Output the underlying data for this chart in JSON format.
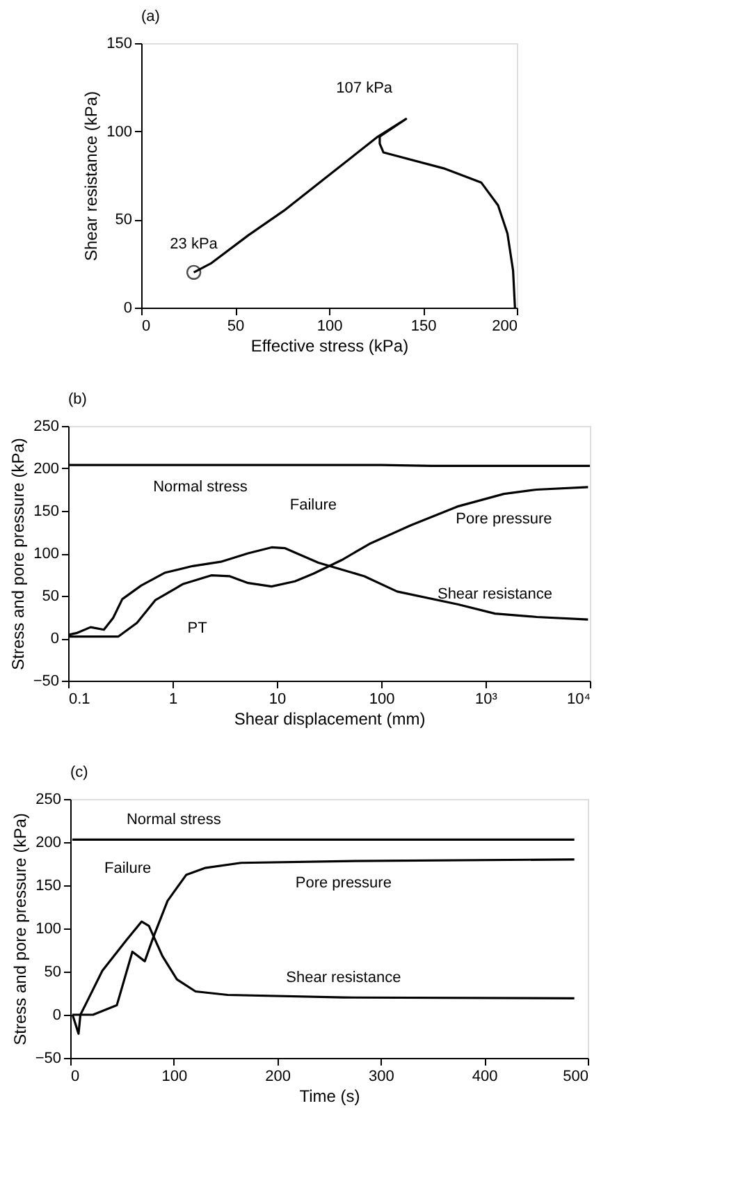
{
  "chart_data": [
    {
      "type": "line",
      "title": "(a)",
      "xlabel": "Effective stress (kPa)",
      "ylabel": "Shear resistance (kPa)",
      "xlim": [
        0,
        200
      ],
      "ylim": [
        0,
        150
      ],
      "xticks": [
        0,
        50,
        100,
        150,
        200
      ],
      "yticks": [
        0,
        50,
        100,
        150
      ],
      "grid": false,
      "series": [
        {
          "color": "#000000",
          "x": [
            199,
            198,
            195,
            190,
            181,
            161,
            129,
            127,
            127,
            141,
            126,
            76,
            57,
            37,
            28
          ],
          "values": [
            0,
            21,
            42,
            58,
            71,
            79,
            88,
            93,
            97,
            107,
            97,
            55,
            41,
            25,
            20
          ]
        },
        {
          "type": "scatter",
          "marker": "circle",
          "color": "#000000",
          "x": [
            28
          ],
          "values": [
            20
          ]
        }
      ],
      "annotations": [
        {
          "text": "23 kPa",
          "x": 28,
          "y": 20
        },
        {
          "text": "107 kPa",
          "x": 141,
          "y": 107
        }
      ]
    },
    {
      "type": "line",
      "title": "(b)",
      "xlabel": "Shear displacement (mm)",
      "ylabel": "Stress and pore pressure (kPa)",
      "log": "x",
      "xlim": [
        0.1,
        10000
      ],
      "ylim": [
        -50,
        250
      ],
      "xticks": [
        0.1,
        1,
        10,
        100,
        {
          "value": 1000,
          "label": "10³"
        },
        {
          "value": 10000,
          "label": "10⁴"
        }
      ],
      "yticks": [
        -50,
        0,
        50,
        100,
        150,
        200,
        250
      ],
      "grid": false,
      "series": [
        {
          "name": "Normal stress",
          "color": "#000000",
          "x": [
            0.1,
            0.3,
            1,
            3,
            10,
            30,
            100,
            300,
            1000,
            3000,
            10000
          ],
          "values": [
            204,
            204,
            204,
            204,
            204,
            204,
            204,
            203,
            203,
            203,
            203
          ]
        },
        {
          "name": "Shear resistance",
          "color": "#000000",
          "x": [
            0.1,
            0.12,
            0.164,
            0.22,
            0.27,
            0.33,
            0.5,
            0.84,
            1.56,
            2.9,
            5.3,
            8.9,
            12,
            25,
            69,
            142,
            540,
            1230,
            3100,
            9600
          ],
          "values": [
            4,
            6,
            13,
            10,
            24,
            46,
            62,
            77,
            85,
            90,
            100,
            107,
            106,
            89,
            73,
            55,
            40,
            29,
            25,
            22
          ]
        },
        {
          "name": "Pore pressure",
          "color": "#000000",
          "x": [
            0.103,
            0.303,
            0.456,
            0.687,
            1.27,
            2.35,
            3.54,
            5.3,
            8.9,
            14.9,
            22.4,
            41.7,
            77,
            192,
            535,
            1500,
            3070,
            9600
          ],
          "values": [
            2,
            2,
            18,
            45,
            64,
            74,
            73,
            65,
            61,
            67,
            76,
            92,
            111,
            133,
            155,
            170,
            175,
            178
          ]
        }
      ],
      "annotations": [
        {
          "text": "Failure",
          "x": 8.9,
          "y": 107
        },
        {
          "text": "PT",
          "x": 1.27,
          "y": 64
        }
      ]
    },
    {
      "type": "line",
      "title": "(c)",
      "xlabel": "Time (s)",
      "ylabel": "Stress and pore pressure (kPa)",
      "xlim": [
        0,
        500
      ],
      "ylim": [
        -50,
        250
      ],
      "xticks": [
        0,
        100,
        200,
        300,
        400,
        500
      ],
      "yticks": [
        -50,
        0,
        50,
        100,
        150,
        200,
        250
      ],
      "grid": false,
      "series": [
        {
          "name": "Normal stress",
          "color": "#000000",
          "x": [
            2,
            100,
            200,
            300,
            400,
            487
          ],
          "values": [
            203,
            203,
            203,
            203,
            203,
            203
          ]
        },
        {
          "name": "Shear resistance",
          "color": "#000000",
          "x": [
            2.2,
            8,
            9.8,
            15.7,
            31,
            54,
            69,
            76,
            89,
            103,
            121,
            152,
            264,
            487
          ],
          "values": [
            0,
            -22,
            0,
            14,
            51,
            86,
            108,
            103,
            68,
            41,
            27,
            23,
            20,
            19
          ]
        },
        {
          "name": "Pore pressure",
          "color": "#000000",
          "x": [
            2,
            22,
            45,
            60,
            72,
            80,
            94,
            112,
            130,
            165,
            264,
            487
          ],
          "values": [
            0,
            0,
            11,
            73,
            62,
            89,
            132,
            162,
            170,
            176,
            178,
            180
          ]
        }
      ],
      "annotations": [
        {
          "text": "Failure",
          "x": 69,
          "y": 108
        }
      ]
    }
  ]
}
